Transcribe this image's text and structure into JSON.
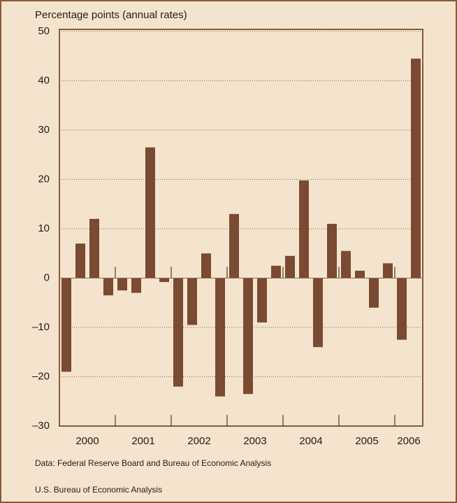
{
  "chart_data": {
    "type": "bar",
    "title": "Percentage points (annual rates)",
    "notes": [
      "Data: Federal Reserve Board and Bureau of Economic Analysis",
      "U.S. Bureau of Economic Analysis"
    ],
    "categories": [
      "2000",
      null,
      null,
      null,
      "2001",
      null,
      null,
      null,
      "2002",
      null,
      null,
      null,
      "2003",
      null,
      null,
      null,
      "2004",
      null,
      null,
      null,
      "2005",
      null,
      null,
      null,
      "2006",
      null
    ],
    "values": [
      -19,
      7,
      12,
      -3.5,
      -2.5,
      -3,
      26.5,
      -0.8,
      -22,
      -9.5,
      5,
      -24,
      13,
      -23.5,
      -9,
      2.5,
      4.5,
      19.8,
      -14,
      11,
      5.5,
      1.5,
      -6,
      3,
      -12.5,
      44.5
    ],
    "color": "#7a4a32",
    "ylim": [
      -30,
      50
    ],
    "yticks": [
      {
        "value": -30,
        "label": "–30"
      },
      {
        "value": -20,
        "label": "–20"
      },
      {
        "value": -10,
        "label": "–10"
      },
      0,
      10,
      20,
      30,
      40,
      50
    ],
    "grid": true
  }
}
